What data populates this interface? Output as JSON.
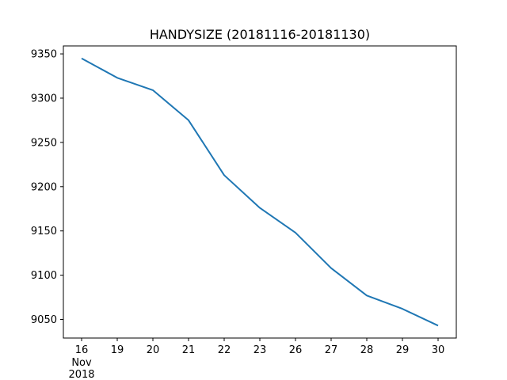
{
  "chart_data": {
    "type": "line",
    "title": "HANDYSIZE (20181116-20181130)",
    "xlabel": "",
    "ylabel": "",
    "x": [
      "16",
      "19",
      "20",
      "21",
      "22",
      "23",
      "26",
      "27",
      "28",
      "29",
      "30"
    ],
    "x_sublabels": [
      "Nov",
      "2018"
    ],
    "series": [
      {
        "values": [
          9345,
          9323,
          9309,
          9275,
          9213,
          9176,
          9148,
          9108,
          9077,
          9062,
          9043
        ],
        "color": "#1f77b4"
      }
    ],
    "yticks": [
      9050,
      9100,
      9150,
      9200,
      9250,
      9300,
      9350
    ],
    "ylim": [
      9029,
      9359
    ],
    "grid": false,
    "legend": "none"
  }
}
